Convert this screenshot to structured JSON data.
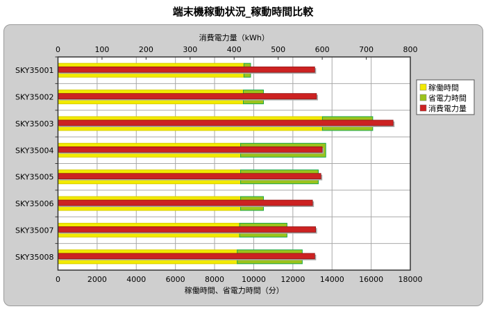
{
  "chart_data": {
    "type": "bar",
    "orientation": "horizontal",
    "title": "端末機稼動状況_稼動時間比較",
    "categories": [
      "SKY35001",
      "SKY35002",
      "SKY35003",
      "SKY35004",
      "SKY35005",
      "SKY35006",
      "SKY35007",
      "SKY35008"
    ],
    "bottom_axis": {
      "label": "稼働時間、省電力時間（分）",
      "range": [
        0,
        18000
      ],
      "ticks": [
        "0",
        "2000",
        "4000",
        "6000",
        "8000",
        "10000",
        "12000",
        "14000",
        "16000",
        "18000"
      ]
    },
    "top_axis": {
      "label": "消費電力量（kWh）",
      "range": [
        0,
        800
      ],
      "ticks": [
        "0",
        "100",
        "200",
        "300",
        "400",
        "500",
        "600",
        "700",
        "800"
      ]
    },
    "series": [
      {
        "name": "稼働時間",
        "axis": "bottom",
        "stacked": true,
        "color": "#f2ea00",
        "values": [
          9500,
          9470,
          13510,
          9330,
          9330,
          9330,
          9280,
          9160
        ]
      },
      {
        "name": "省電力時間",
        "axis": "bottom",
        "stacked": true,
        "color": "#9bc31c",
        "values": [
          340,
          1030,
          2570,
          4350,
          3970,
          1170,
          2420,
          3320
        ]
      },
      {
        "name": "消費電力量",
        "axis": "top",
        "stacked": false,
        "color": "#cc2222",
        "values": [
          583,
          587,
          761,
          600,
          597,
          578,
          585,
          583
        ]
      }
    ],
    "grid": true,
    "legend": "right"
  }
}
